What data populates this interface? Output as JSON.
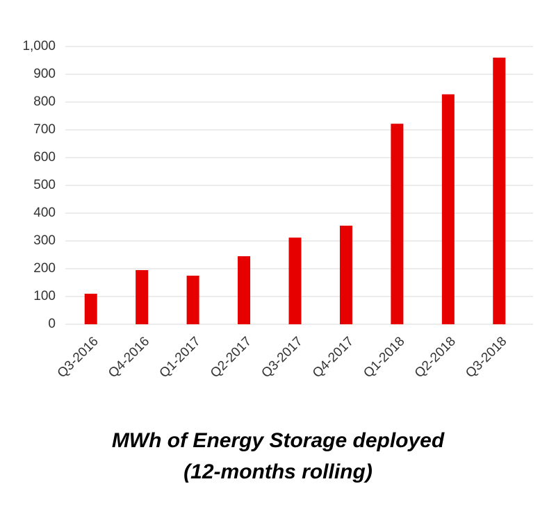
{
  "chart_data": {
    "type": "bar",
    "title": "MWh of Energy Storage deployed",
    "subtitle": "(12-months rolling)",
    "categories": [
      "Q3-2016",
      "Q4-2016",
      "Q1-2017",
      "Q2-2017",
      "Q3-2017",
      "Q4-2017",
      "Q1-2018",
      "Q2-2018",
      "Q3-2018"
    ],
    "values": [
      110,
      195,
      175,
      245,
      312,
      355,
      722,
      828,
      960
    ],
    "color": "#e60000",
    "ylim": [
      0,
      1000
    ],
    "yticks": [
      0,
      100,
      200,
      300,
      400,
      500,
      600,
      700,
      800,
      900,
      {
        "value": 1000,
        "label": "1,000"
      }
    ],
    "grid": true
  }
}
